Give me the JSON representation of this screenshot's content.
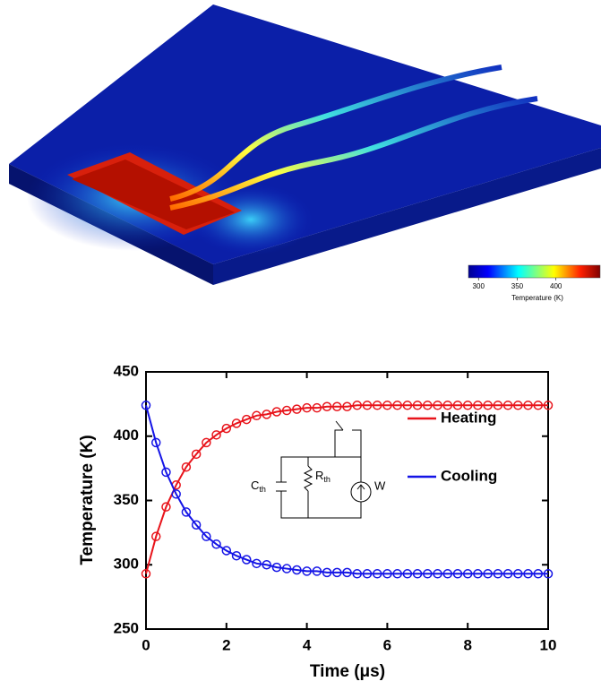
{
  "colorbar": {
    "label": "Temperature (K)",
    "clim": [
      287,
      457
    ],
    "ticks": [
      300,
      350,
      400
    ]
  },
  "chart_data": {
    "type": "line",
    "xlabel": "Time (μs)",
    "ylabel": "Temperature (K)",
    "x": [
      0,
      0.25,
      0.5,
      0.75,
      1,
      1.25,
      1.5,
      1.75,
      2,
      2.25,
      2.5,
      2.75,
      3,
      3.25,
      3.5,
      3.75,
      4,
      4.25,
      4.5,
      4.75,
      5,
      5.25,
      5.5,
      5.75,
      6,
      6.25,
      6.5,
      6.75,
      7,
      7.25,
      7.5,
      7.75,
      8,
      8.25,
      8.5,
      8.75,
      9,
      9.25,
      9.5,
      9.75,
      10
    ],
    "series": [
      {
        "name": "Heating",
        "color": "#e8141b",
        "values": [
          293,
          322,
          345,
          362,
          376,
          386,
          395,
          401,
          406,
          410,
          413,
          416,
          417,
          419,
          420,
          421,
          422,
          422,
          423,
          423,
          423,
          424,
          424,
          424,
          424,
          424,
          424,
          424,
          424,
          424,
          424,
          424,
          424,
          424,
          424,
          424,
          424,
          424,
          424,
          424,
          424
        ]
      },
      {
        "name": "Cooling",
        "color": "#1414e6",
        "values": [
          424,
          395,
          372,
          355,
          341,
          331,
          322,
          316,
          311,
          307,
          304,
          301,
          300,
          298,
          297,
          296,
          295,
          295,
          294,
          294,
          294,
          293,
          293,
          293,
          293,
          293,
          293,
          293,
          293,
          293,
          293,
          293,
          293,
          293,
          293,
          293,
          293,
          293,
          293,
          293,
          293
        ]
      }
    ],
    "xlim": [
      0,
      10
    ],
    "xticks": [
      0,
      2,
      4,
      6,
      8,
      10
    ],
    "ylim": [
      250,
      450
    ],
    "yticks": [
      250,
      300,
      350,
      400,
      450
    ],
    "inset": {
      "c_label": "C",
      "c_sub": "th",
      "r_label": "R",
      "r_sub": "th",
      "w_label": "W"
    }
  }
}
